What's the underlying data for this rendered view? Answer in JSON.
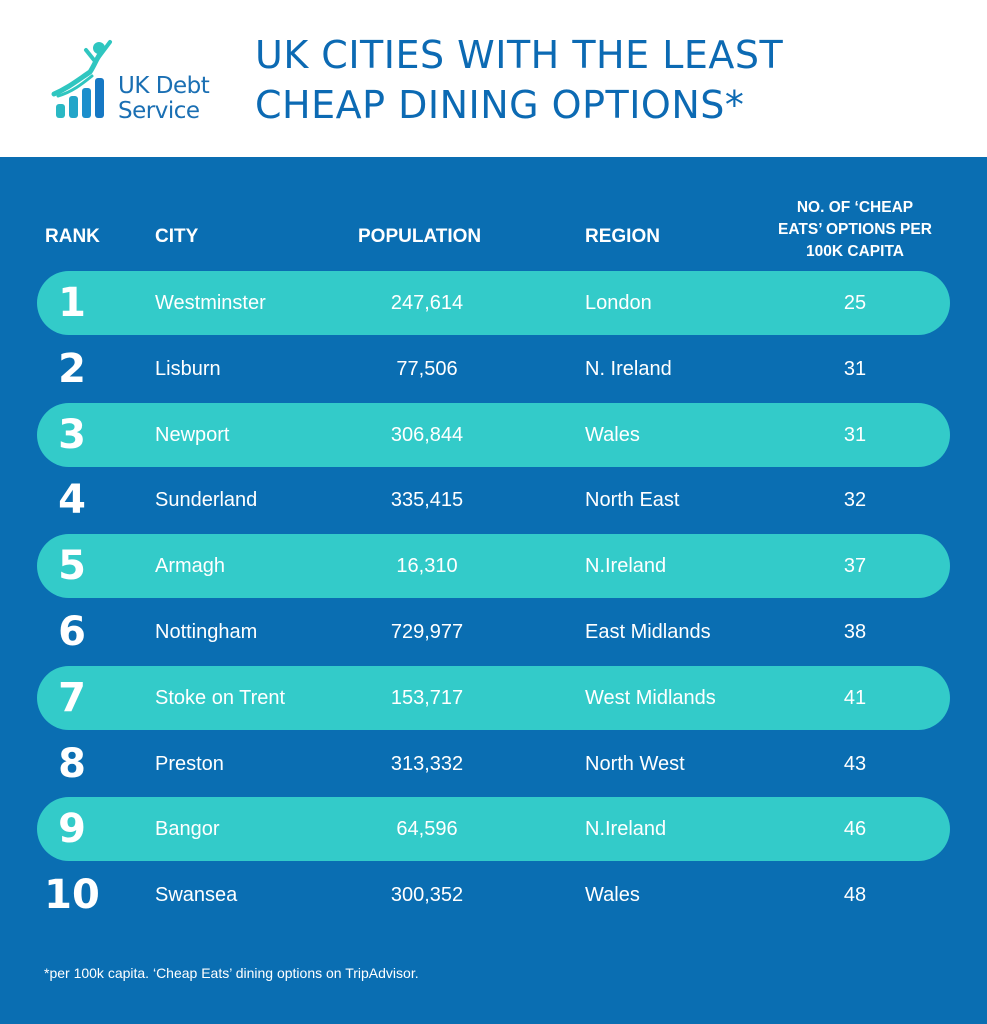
{
  "logo": {
    "line1": "UK Debt",
    "line2": "Service"
  },
  "title": {
    "line1": "UK CITIES WITH THE LEAST",
    "line2": "CHEAP DINING OPTIONS*"
  },
  "colors": {
    "brand_blue": "#0a6eb2",
    "title_blue": "#0c6ab3",
    "highlight_teal": "#33cbc9",
    "white": "#ffffff"
  },
  "chart_data": {
    "type": "table",
    "headers": {
      "rank": "RANK",
      "city": "CITY",
      "population": "POPULATION",
      "region": "REGION",
      "cheap_eats_lines": [
        "NO. OF ‘CHEAP",
        "EATS’ OPTIONS PER",
        "100K CAPITA"
      ]
    },
    "rows": [
      {
        "rank": "1",
        "city": "Westminster",
        "population": "247,614",
        "region": "London",
        "cheap_eats": "25",
        "highlighted": true
      },
      {
        "rank": "2",
        "city": "Lisburn",
        "population": "77,506",
        "region": "N. Ireland",
        "cheap_eats": "31",
        "highlighted": false
      },
      {
        "rank": "3",
        "city": "Newport",
        "population": "306,844",
        "region": "Wales",
        "cheap_eats": "31",
        "highlighted": true
      },
      {
        "rank": "4",
        "city": "Sunderland",
        "population": "335,415",
        "region": "North East",
        "cheap_eats": "32",
        "highlighted": false
      },
      {
        "rank": "5",
        "city": "Armagh",
        "population": "16,310",
        "region": "N.Ireland",
        "cheap_eats": "37",
        "highlighted": true
      },
      {
        "rank": "6",
        "city": "Nottingham",
        "population": "729,977",
        "region": "East Midlands",
        "cheap_eats": "38",
        "highlighted": false
      },
      {
        "rank": "7",
        "city": "Stoke on Trent",
        "population": "153,717",
        "region": "West Midlands",
        "cheap_eats": "41",
        "highlighted": true
      },
      {
        "rank": "8",
        "city": "Preston",
        "population": "313,332",
        "region": "North West",
        "cheap_eats": "43",
        "highlighted": false
      },
      {
        "rank": "9",
        "city": "Bangor",
        "population": "64,596",
        "region": "N.Ireland",
        "cheap_eats": "46",
        "highlighted": true
      },
      {
        "rank": "10",
        "city": "Swansea",
        "population": "300,352",
        "region": "Wales",
        "cheap_eats": "48",
        "highlighted": false
      }
    ],
    "footnote": "*per 100k capita. ‘Cheap Eats’ dining options on TripAdvisor."
  }
}
